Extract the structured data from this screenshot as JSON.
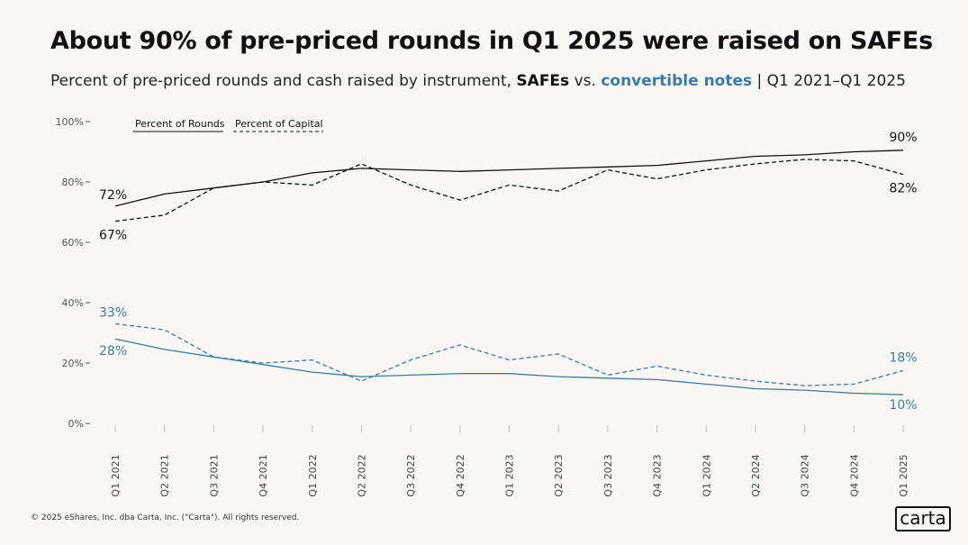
{
  "title": "About 90% of pre-priced rounds in Q1 2025 were raised on SAFEs",
  "subtitle": {
    "prefix": "Percent of pre-priced rounds and cash raised by instrument, ",
    "safes": "SAFEs",
    "vs": " vs. ",
    "notes": "convertible notes",
    "suffix": " | Q1 2021–Q1 2025"
  },
  "footer": "© 2025 eShares, Inc. dba Carta, Inc. (\"Carta\"). All rights reserved.",
  "logo": "carta",
  "colors": {
    "safe": "#111111",
    "note": "#3a7ba5",
    "background": "#f9f7f3"
  },
  "chart_data": {
    "type": "line",
    "x": [
      "Q1 2021",
      "Q2 2021",
      "Q3 2021",
      "Q4 2021",
      "Q1 2022",
      "Q2 2022",
      "Q3 2022",
      "Q4 2022",
      "Q1 2023",
      "Q2 2023",
      "Q3 2023",
      "Q4 2023",
      "Q1 2024",
      "Q2 2024",
      "Q3 2024",
      "Q4 2024",
      "Q1 2025"
    ],
    "ylim": [
      0,
      100
    ],
    "yticks": [
      "0%",
      "20%",
      "40%",
      "60%",
      "80%",
      "100%"
    ],
    "legend": [
      {
        "label": "Percent of Rounds",
        "style": "solid"
      },
      {
        "label": "Percent of Capital",
        "style": "dashed"
      }
    ],
    "legend_position": "top-left",
    "series": [
      {
        "instrument": "SAFEs",
        "metric": "Percent of Rounds",
        "style": "solid",
        "color": "#111111",
        "values": [
          72,
          76,
          78,
          80,
          83,
          84.5,
          84,
          83.5,
          84,
          84.5,
          85,
          85.5,
          87,
          88.5,
          89,
          90,
          90.5
        ]
      },
      {
        "instrument": "SAFEs",
        "metric": "Percent of Capital",
        "style": "dashed",
        "color": "#111111",
        "values": [
          67,
          69,
          78,
          80,
          79,
          86,
          79,
          74,
          79,
          77,
          84,
          81,
          84,
          86,
          87.5,
          87,
          82.5
        ]
      },
      {
        "instrument": "convertible notes",
        "metric": "Percent of Rounds",
        "style": "solid",
        "color": "#3a7ba5",
        "values": [
          28,
          24.5,
          22,
          19.5,
          17,
          15.5,
          16,
          16.5,
          16.5,
          15.5,
          15,
          14.5,
          13,
          11.5,
          11,
          10,
          9.5
        ]
      },
      {
        "instrument": "convertible notes",
        "metric": "Percent of Capital",
        "style": "dashed",
        "color": "#3a7ba5",
        "values": [
          33,
          31,
          22,
          20,
          21,
          14,
          21,
          26,
          21,
          23,
          16,
          19,
          16,
          14,
          12.5,
          13,
          17.5
        ]
      }
    ],
    "data_labels": [
      {
        "text": "72%",
        "series": 0,
        "index": 0,
        "color": "#111111"
      },
      {
        "text": "67%",
        "series": 1,
        "index": 0,
        "color": "#111111"
      },
      {
        "text": "33%",
        "series": 3,
        "index": 0,
        "color": "#3a7ba5"
      },
      {
        "text": "28%",
        "series": 2,
        "index": 0,
        "color": "#3a7ba5"
      },
      {
        "text": "90%",
        "series": 0,
        "index": 16,
        "color": "#111111"
      },
      {
        "text": "82%",
        "series": 1,
        "index": 16,
        "color": "#111111"
      },
      {
        "text": "18%",
        "series": 3,
        "index": 16,
        "color": "#3a7ba5"
      },
      {
        "text": "10%",
        "series": 2,
        "index": 16,
        "color": "#3a7ba5"
      }
    ]
  }
}
